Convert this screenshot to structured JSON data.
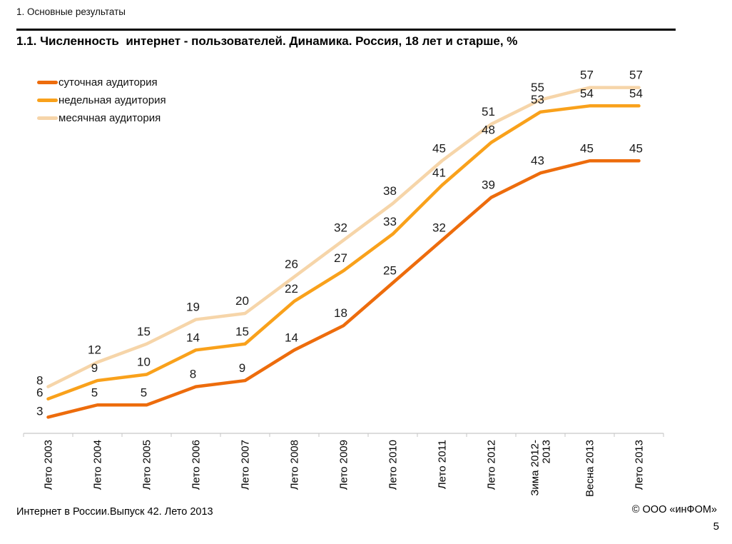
{
  "page": {
    "header": "1. Основные результаты",
    "footer_left": "Интернет в России.Выпуск 42. Лето 2013",
    "footer_right": "© ООО «инФОМ»",
    "page_number": "5"
  },
  "chart_data": {
    "type": "line",
    "title": "1.1. Численность  интернет - пользователей. Динамика. Россия, 18 лет и старше, %",
    "categories": [
      "Лето 2003",
      "Лето 2004",
      "Лето 2005",
      "Лето 2006",
      "Лето 2007",
      "Лето 2008",
      "Лето 2009",
      "Лето 2010",
      "Лето 2011",
      "Лето 2012",
      "Зима 2012-\n2013",
      "Весна 2013",
      "Лето 2013"
    ],
    "series": [
      {
        "id": "daily",
        "name": "суточная аудитория",
        "color": "#ED6C0C",
        "values": [
          3,
          5,
          5,
          8,
          9,
          14,
          18,
          25,
          32,
          39,
          43,
          45,
          45
        ]
      },
      {
        "id": "weekly",
        "name": "недельная аудитория",
        "color": "#F9A11B",
        "values": [
          6,
          9,
          10,
          14,
          15,
          22,
          27,
          33,
          41,
          48,
          53,
          54,
          54
        ]
      },
      {
        "id": "monthly",
        "name": "месячная аудитория",
        "color": "#F6D5A9",
        "values": [
          8,
          12,
          15,
          19,
          20,
          26,
          32,
          38,
          45,
          51,
          55,
          57,
          57
        ]
      }
    ],
    "ylim": [
      0,
      62
    ],
    "xlabel": "",
    "ylabel": "",
    "grid": false,
    "data_labels": true,
    "legend_position": "top-left",
    "axis_color": "#C6C6C6"
  }
}
